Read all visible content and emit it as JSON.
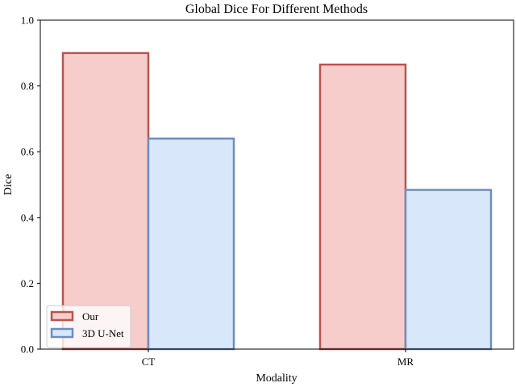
{
  "chart_data": {
    "type": "bar",
    "title": "Global Dice For Different Methods",
    "xlabel": "Modality",
    "ylabel": "Dice",
    "categories": [
      "CT",
      "MR"
    ],
    "series": [
      {
        "name": "Our",
        "values": [
          0.9,
          0.865
        ],
        "fill": "#f6cdcb",
        "stroke": "#b85450"
      },
      {
        "name": "3D U-Net",
        "values": [
          0.64,
          0.484
        ],
        "fill": "#d9e7fb",
        "stroke": "#6c8ebf"
      }
    ],
    "ylim": [
      0,
      1.0
    ],
    "yticks": [
      "0.0",
      "0.2",
      "0.4",
      "0.6",
      "0.8",
      "1.0"
    ],
    "grid": false,
    "legend_position": "lower-left"
  }
}
